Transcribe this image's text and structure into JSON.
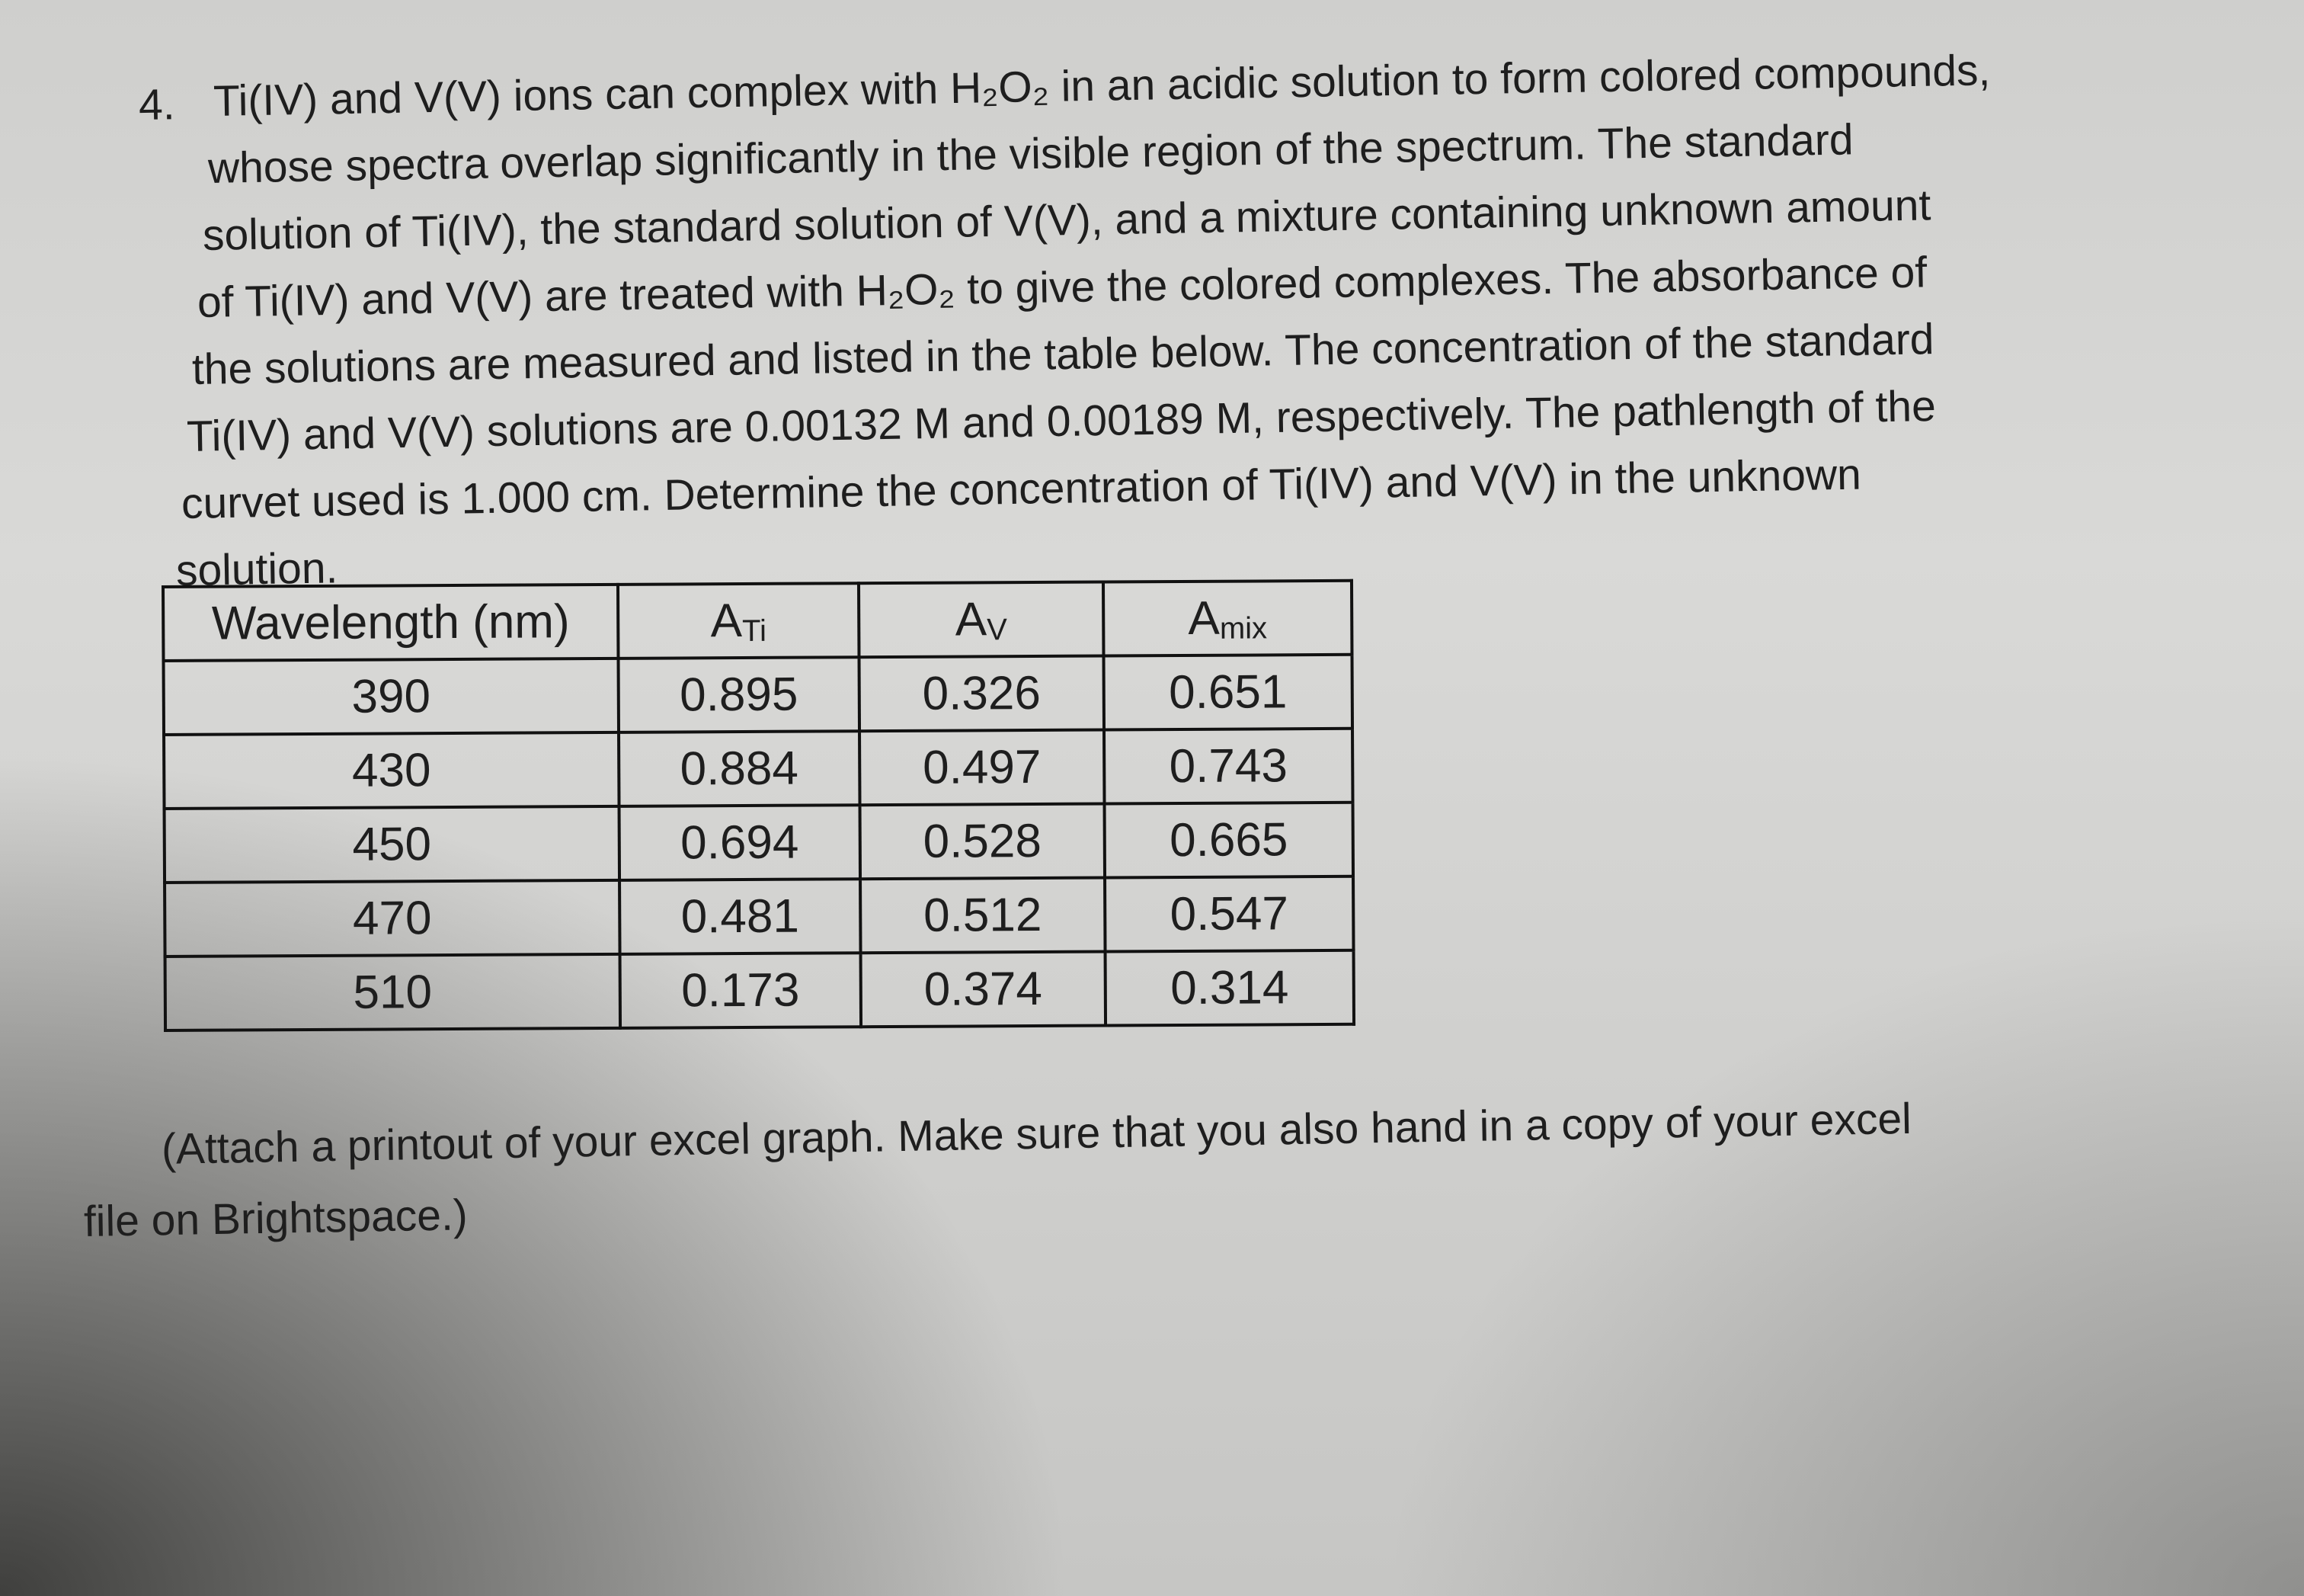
{
  "question": {
    "number": "4.",
    "lines": [
      "Ti(IV) and V(V) ions can complex with H₂O₂ in an acidic solution to form colored compounds,",
      "whose spectra overlap significantly in the visible region of the spectrum. The standard",
      "solution of Ti(IV), the standard solution of V(V), and a mixture containing unknown amount",
      "of Ti(IV) and V(V) are treated with H₂O₂ to give the colored complexes. The absorbance of",
      "the solutions are measured and listed in the table below. The concentration of the standard",
      "Ti(IV) and V(V) solutions are 0.00132 M and 0.00189 M, respectively. The pathlength of the",
      "curvet used is 1.000 cm. Determine the concentration of Ti(IV) and V(V) in the unknown",
      "solution."
    ]
  },
  "table": {
    "header": [
      {
        "main": "Wavelength (nm)"
      },
      {
        "main": "A",
        "sub": "Ti"
      },
      {
        "main": "A",
        "sub": "V"
      },
      {
        "main": "A",
        "sub": "mix"
      }
    ],
    "rows": [
      [
        390,
        0.895,
        0.326,
        0.651
      ],
      [
        430,
        0.884,
        0.497,
        0.743
      ],
      [
        450,
        0.694,
        0.528,
        0.665
      ],
      [
        470,
        0.481,
        0.512,
        0.547
      ],
      [
        510,
        0.173,
        0.374,
        0.314
      ]
    ]
  },
  "footer": {
    "lines": [
      "(Attach a printout of your excel graph. Make sure that you also hand in a copy of your excel",
      "file on Brightspace.)"
    ]
  }
}
